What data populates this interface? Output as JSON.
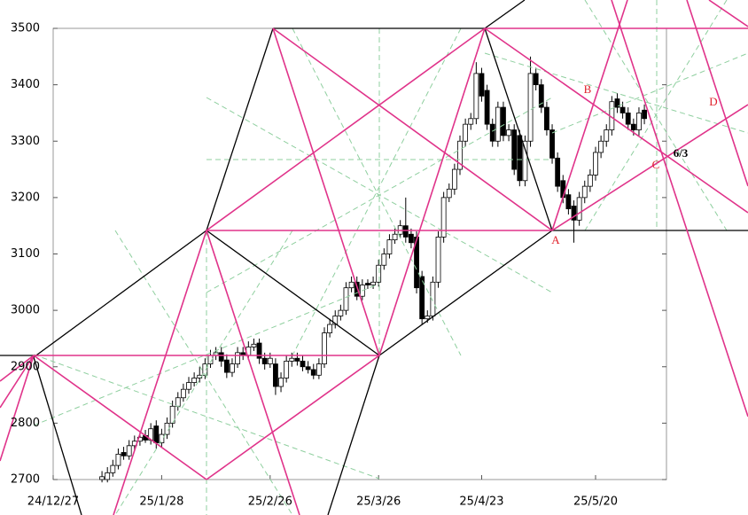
{
  "chart_data": {
    "type": "candlestick",
    "categories": [
      "24/12/27",
      null,
      null,
      null,
      null,
      null,
      null,
      null,
      null,
      null,
      null,
      null,
      null,
      null,
      null,
      null,
      null,
      null,
      null,
      null,
      "25/1/28",
      null,
      null,
      null,
      null,
      null,
      null,
      null,
      null,
      null,
      null,
      null,
      null,
      null,
      null,
      null,
      null,
      null,
      null,
      null,
      "25/2/26",
      null,
      null,
      null,
      null,
      null,
      null,
      null,
      null,
      null,
      null,
      null,
      null,
      null,
      null,
      null,
      null,
      null,
      null,
      null,
      "25/3/26",
      null,
      null,
      null,
      null,
      null,
      null,
      null,
      null,
      null,
      null,
      null,
      null,
      null,
      null,
      null,
      null,
      null,
      null,
      "25/4/23",
      null,
      null,
      null,
      null,
      null,
      null,
      null,
      null,
      null,
      null,
      null,
      null,
      null,
      null,
      null,
      null,
      null,
      null,
      null,
      null,
      "25/5/20",
      null,
      null,
      null,
      null,
      null,
      null,
      null,
      null,
      null
    ],
    "open": [
      null,
      null,
      null,
      null,
      null,
      null,
      null,
      null,
      null,
      2700,
      2700,
      2712,
      2725,
      2748,
      2742,
      2760,
      2768,
      2778,
      2770,
      2795,
      2765,
      2780,
      2800,
      2830,
      2845,
      2860,
      2872,
      2880,
      2885,
      2905,
      2920,
      2925,
      2912,
      2890,
      2905,
      2925,
      2920,
      2935,
      2942,
      2915,
      2905,
      2905,
      2865,
      2880,
      2910,
      2915,
      2910,
      2900,
      2895,
      2885,
      2905,
      2960,
      2975,
      2990,
      3000,
      3040,
      3050,
      3025,
      3048,
      3045,
      3050,
      3080,
      3100,
      3125,
      3135,
      3150,
      3135,
      3130,
      3060,
      2985,
      2990,
      3050,
      3130,
      3200,
      3215,
      3250,
      3300,
      3330,
      3340,
      3420,
      3390,
      3330,
      3300,
      3360,
      3310,
      3320,
      3310,
      3230,
      3300,
      3420,
      3400,
      3360,
      3320,
      3270,
      3230,
      3205,
      3185,
      3160,
      3200,
      3220,
      3240,
      3280,
      3300,
      3320,
      3375,
      3360,
      3350,
      3330,
      3320,
      3355
    ],
    "high": [
      null,
      null,
      null,
      null,
      null,
      null,
      null,
      null,
      null,
      2715,
      2722,
      2735,
      2755,
      2758,
      2770,
      2778,
      2785,
      2788,
      2800,
      2805,
      2790,
      2810,
      2840,
      2855,
      2870,
      2882,
      2890,
      2900,
      2915,
      2930,
      2935,
      2935,
      2922,
      2915,
      2935,
      2935,
      2945,
      2950,
      2950,
      2925,
      2925,
      2915,
      2890,
      2920,
      2925,
      2925,
      2920,
      2910,
      2905,
      2915,
      2970,
      2985,
      3000,
      3010,
      3050,
      3060,
      3060,
      3055,
      3055,
      3060,
      3090,
      3110,
      3135,
      3145,
      3160,
      3200,
      3145,
      3140,
      3070,
      3000,
      3060,
      3140,
      3210,
      3225,
      3260,
      3310,
      3340,
      3350,
      3440,
      3430,
      3400,
      3340,
      3370,
      3370,
      3330,
      3330,
      3320,
      3310,
      3450,
      3430,
      3410,
      3370,
      3330,
      3280,
      3240,
      3215,
      3195,
      3210,
      3230,
      3250,
      3290,
      3310,
      3330,
      3380,
      3385,
      3370,
      3360,
      3340,
      3360,
      3365
    ],
    "low": [
      null,
      null,
      null,
      null,
      null,
      null,
      null,
      null,
      null,
      2695,
      2695,
      2705,
      2718,
      2735,
      2735,
      2752,
      2760,
      2765,
      2762,
      2755,
      2758,
      2772,
      2792,
      2822,
      2838,
      2852,
      2865,
      2872,
      2878,
      2898,
      2912,
      2900,
      2880,
      2882,
      2898,
      2912,
      2912,
      2928,
      2905,
      2895,
      2898,
      2850,
      2855,
      2872,
      2900,
      2902,
      2892,
      2888,
      2878,
      2878,
      2898,
      2952,
      2968,
      2982,
      2992,
      3032,
      3018,
      3018,
      3038,
      3038,
      3042,
      3072,
      3092,
      3118,
      3128,
      3120,
      3110,
      3030,
      2975,
      2978,
      2982,
      3040,
      3120,
      3192,
      3205,
      3240,
      3290,
      3320,
      3330,
      3370,
      3320,
      3290,
      3290,
      3300,
      3300,
      3240,
      3220,
      3220,
      3290,
      3390,
      3350,
      3310,
      3260,
      3210,
      3190,
      3170,
      3120,
      3150,
      3190,
      3210,
      3230,
      3270,
      3290,
      3310,
      3350,
      3340,
      3320,
      3310,
      3310,
      3330
    ],
    "close": [
      null,
      null,
      null,
      null,
      null,
      null,
      null,
      null,
      null,
      2705,
      2712,
      2725,
      2745,
      2742,
      2760,
      2768,
      2775,
      2770,
      2790,
      2765,
      2780,
      2800,
      2830,
      2845,
      2860,
      2872,
      2880,
      2885,
      2905,
      2920,
      2925,
      2910,
      2890,
      2905,
      2925,
      2920,
      2935,
      2940,
      2915,
      2905,
      2915,
      2865,
      2880,
      2910,
      2915,
      2910,
      2900,
      2895,
      2885,
      2905,
      2960,
      2975,
      2990,
      3000,
      3040,
      3050,
      3025,
      3045,
      3045,
      3050,
      3080,
      3100,
      3125,
      3135,
      3150,
      3130,
      3120,
      3040,
      2985,
      2990,
      3050,
      3130,
      3200,
      3215,
      3250,
      3300,
      3330,
      3340,
      3420,
      3380,
      3330,
      3300,
      3360,
      3310,
      3320,
      3250,
      3230,
      3300,
      3420,
      3400,
      3360,
      3320,
      3270,
      3220,
      3200,
      3180,
      3160,
      3200,
      3220,
      3240,
      3280,
      3300,
      3320,
      3370,
      3360,
      3350,
      3330,
      3320,
      3350,
      3340
    ],
    "up_color": "#ffffff",
    "down_color": "#000000",
    "ylim": [
      2700,
      3500
    ],
    "yticks": [
      2700,
      2800,
      2900,
      3000,
      3100,
      3200,
      3300,
      3400,
      3500
    ],
    "annotations": [
      "A",
      "B",
      "C",
      "D",
      "6/3"
    ]
  }
}
